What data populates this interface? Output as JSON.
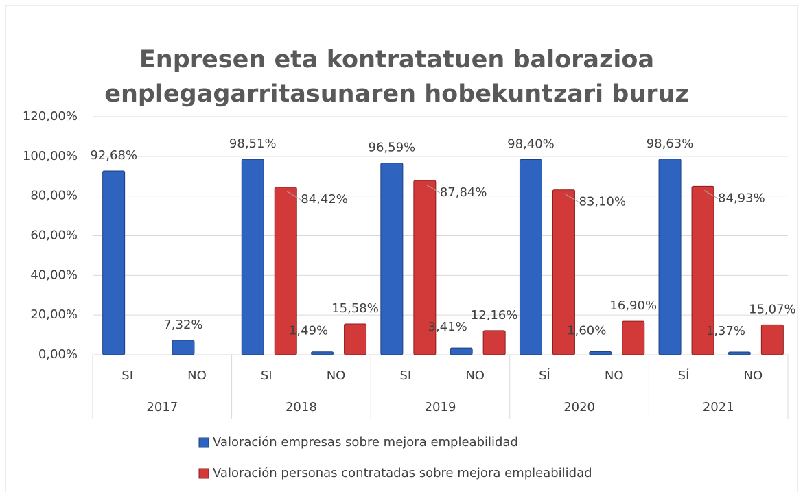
{
  "chart_data": {
    "type": "bar",
    "title": "Enpresen eta kontratatuen balorazioa",
    "subtitle": "enplegagarritasunaren hobekuntzari buruz",
    "categories": [
      "SI",
      "NO",
      "SI",
      "NO",
      "SI",
      "NO",
      "SÍ",
      "NO",
      "SÍ",
      "NO"
    ],
    "groups": [
      "2017",
      "2018",
      "2019",
      "2020",
      "2021"
    ],
    "series": [
      {
        "name": "Valoración empresas sobre mejora empleabilidad",
        "color": "#2e64c0",
        "values": [
          92.68,
          7.32,
          98.51,
          1.49,
          96.59,
          3.41,
          98.4,
          1.6,
          98.63,
          1.37
        ],
        "value_labels": [
          "92,68%",
          "7,32%",
          "98,51%",
          "1,49%",
          "96,59%",
          "3,41%",
          "98,40%",
          "1,60%",
          "98,63%",
          "1,37%"
        ]
      },
      {
        "name": "Valoración personas contratadas sobre mejora empleabilidad",
        "color": "#d23a3a",
        "values": [
          null,
          null,
          84.42,
          15.58,
          87.84,
          12.16,
          83.1,
          16.9,
          84.93,
          15.07
        ],
        "value_labels": [
          null,
          null,
          "84,42%",
          "15,58%",
          "87,84%",
          "12,16%",
          "83,10%",
          "16,90%",
          "84,93%",
          "15,07%"
        ]
      }
    ],
    "ylim": [
      0,
      120
    ],
    "yticks": [
      {
        "value": 0,
        "label": "0,00%"
      },
      {
        "value": 20,
        "label": "20,00%"
      },
      {
        "value": 40,
        "label": "40,00%"
      },
      {
        "value": 60,
        "label": "60,00%"
      },
      {
        "value": 80,
        "label": "80,00%"
      },
      {
        "value": 100,
        "label": "100,00%"
      },
      {
        "value": 120,
        "label": "120,00%"
      }
    ]
  }
}
